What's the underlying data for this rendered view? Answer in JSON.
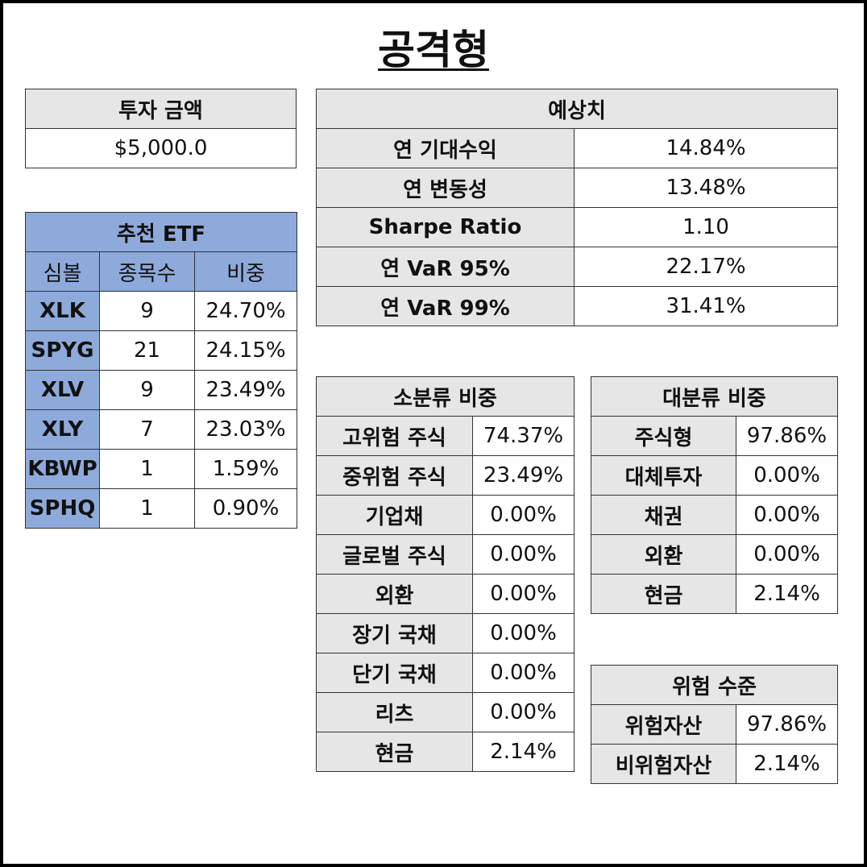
{
  "title": "공격형",
  "investment": {
    "header": "투자 금액",
    "amount": "$5,000.0"
  },
  "etf": {
    "header": "추천 ETF",
    "columns": [
      "심볼",
      "종목수",
      "비중"
    ],
    "rows": [
      {
        "symbol": "XLK",
        "count": "9",
        "weight": "24.70%"
      },
      {
        "symbol": "SPYG",
        "count": "21",
        "weight": "24.15%"
      },
      {
        "symbol": "XLV",
        "count": "9",
        "weight": "23.49%"
      },
      {
        "symbol": "XLY",
        "count": "7",
        "weight": "23.03%"
      },
      {
        "symbol": "KBWP",
        "count": "1",
        "weight": "1.59%"
      },
      {
        "symbol": "SPHQ",
        "count": "1",
        "weight": "0.90%"
      }
    ]
  },
  "forecast": {
    "header": "예상치",
    "rows": [
      {
        "label": "연 기대수익",
        "value": "14.84%"
      },
      {
        "label": "연 변동성",
        "value": "13.48%"
      },
      {
        "label": "Sharpe Ratio",
        "value": "1.10"
      },
      {
        "label": "연 VaR 95%",
        "value": "22.17%"
      },
      {
        "label": "연 VaR 99%",
        "value": "31.41%"
      }
    ]
  },
  "sub_category": {
    "header": "소분류 비중",
    "rows": [
      {
        "label": "고위험 주식",
        "value": "74.37%"
      },
      {
        "label": "중위험 주식",
        "value": "23.49%"
      },
      {
        "label": "기업채",
        "value": "0.00%"
      },
      {
        "label": "글로벌 주식",
        "value": "0.00%"
      },
      {
        "label": "외환",
        "value": "0.00%"
      },
      {
        "label": "장기 국채",
        "value": "0.00%"
      },
      {
        "label": "단기 국채",
        "value": "0.00%"
      },
      {
        "label": "리츠",
        "value": "0.00%"
      },
      {
        "label": "현금",
        "value": "2.14%"
      }
    ]
  },
  "main_category": {
    "header": "대분류 비중",
    "rows": [
      {
        "label": "주식형",
        "value": "97.86%"
      },
      {
        "label": "대체투자",
        "value": "0.00%"
      },
      {
        "label": "채권",
        "value": "0.00%"
      },
      {
        "label": "외환",
        "value": "0.00%"
      },
      {
        "label": "현금",
        "value": "2.14%"
      }
    ]
  },
  "risk_level": {
    "header": "위험 수준",
    "rows": [
      {
        "label": "위험자산",
        "value": "97.86%"
      },
      {
        "label": "비위험자산",
        "value": "2.14%"
      }
    ]
  },
  "colors": {
    "header_gray": "#e6e6e6",
    "header_blue": "#8eaadb",
    "border": "#333333"
  }
}
